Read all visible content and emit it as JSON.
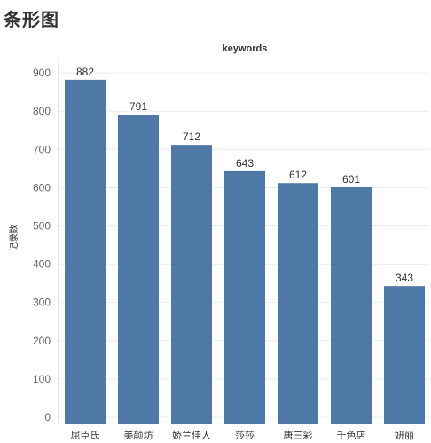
{
  "page": {
    "title": "条形图"
  },
  "chart_data": {
    "type": "bar",
    "title": "keywords",
    "xlabel": "",
    "ylabel": "记录数",
    "categories": [
      "屈臣氏",
      "美颜坊",
      "娇兰佳人",
      "莎莎",
      "唐三彩",
      "千色店",
      "妍丽"
    ],
    "values": [
      882,
      791,
      712,
      643,
      612,
      601,
      343
    ],
    "ylim": [
      0,
      950
    ],
    "yticks": [
      0,
      100,
      200,
      300,
      400,
      500,
      600,
      700,
      800,
      900
    ],
    "grid": true,
    "legend": "none",
    "colors": {
      "bar": "#4e79a7",
      "grid": "#ececec",
      "axis": "#cccccc"
    }
  }
}
